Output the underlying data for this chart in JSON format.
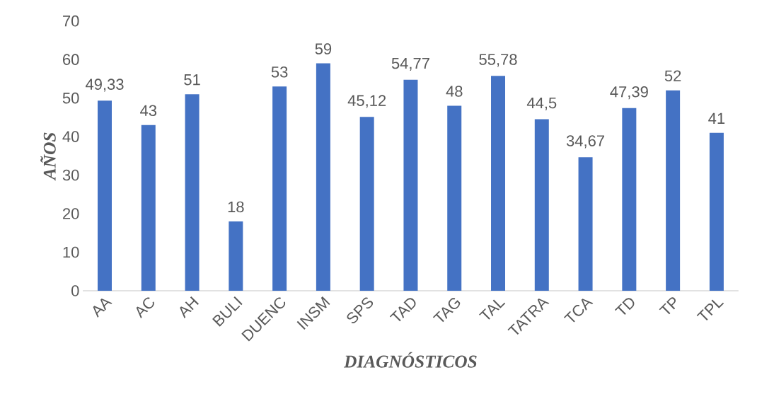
{
  "chart_data": {
    "type": "bar",
    "xlabel": "DIAGNÓSTICOS",
    "ylabel": "AÑOS",
    "categories": [
      "AA",
      "AC",
      "AH",
      "BULI",
      "DUENC",
      "INSM",
      "SPS",
      "TAD",
      "TAG",
      "TAL",
      "TATRA",
      "TCA",
      "TD",
      "TP",
      "TPL"
    ],
    "values": [
      49.33,
      43,
      51,
      18,
      53,
      59,
      45.12,
      54.77,
      48,
      55.78,
      44.5,
      34.67,
      47.39,
      52,
      41
    ],
    "value_labels": [
      "49,33",
      "43",
      "51",
      "18",
      "53",
      "59",
      "45,12",
      "54,77",
      "48",
      "55,78",
      "44,5",
      "34,67",
      "47,39",
      "52",
      "41"
    ],
    "color": "#4472c4",
    "ylim": [
      0,
      70
    ],
    "yticks": [
      0,
      10,
      20,
      30,
      40,
      50,
      60,
      70
    ],
    "grid": false
  }
}
